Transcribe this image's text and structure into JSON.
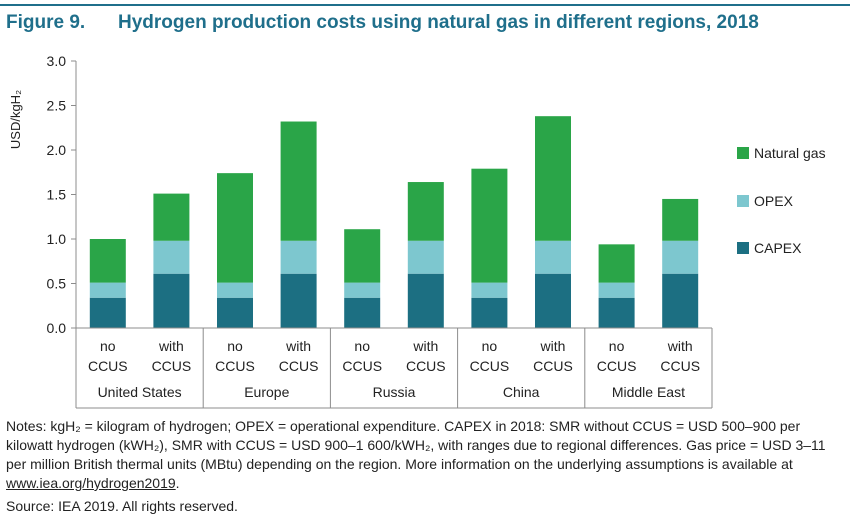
{
  "header": {
    "figure_label": "Figure 9.",
    "title": "Hydrogen production costs using natural gas in different regions, 2018"
  },
  "chart_data": {
    "type": "bar",
    "stacked": true,
    "title": "Hydrogen production costs using natural gas in different regions, 2018",
    "ylabel": "USD/kgH₂",
    "ylim": [
      0,
      3.0
    ],
    "yticks": [
      "0.0",
      "0.5",
      "1.0",
      "1.5",
      "2.0",
      "2.5",
      "3.0"
    ],
    "grid": false,
    "legend_position": "right",
    "groups": [
      "United States",
      "Europe",
      "Russia",
      "China",
      "Middle East"
    ],
    "sub_categories": [
      [
        "no",
        "CCUS"
      ],
      [
        "with",
        "CCUS"
      ]
    ],
    "categories": [
      "United States no CCUS",
      "United States with CCUS",
      "Europe no CCUS",
      "Europe with CCUS",
      "Russia no CCUS",
      "Russia with CCUS",
      "China no CCUS",
      "China with CCUS",
      "Middle East no CCUS",
      "Middle East with CCUS"
    ],
    "series": [
      {
        "name": "CAPEX",
        "color": "#1c6f82",
        "values": [
          0.34,
          0.61,
          0.34,
          0.61,
          0.34,
          0.61,
          0.34,
          0.61,
          0.34,
          0.61
        ]
      },
      {
        "name": "OPEX",
        "color": "#7dc7cf",
        "values": [
          0.17,
          0.37,
          0.17,
          0.37,
          0.17,
          0.37,
          0.17,
          0.37,
          0.17,
          0.37
        ]
      },
      {
        "name": "Natural gas",
        "color": "#2aa548",
        "values": [
          0.49,
          0.53,
          1.23,
          1.34,
          0.6,
          0.66,
          1.28,
          1.4,
          0.43,
          0.47
        ]
      }
    ],
    "legend_order": [
      "Natural gas",
      "OPEX",
      "CAPEX"
    ]
  },
  "notes": {
    "text": "Notes: kgH₂ = kilogram of hydrogen; OPEX = operational expenditure. CAPEX in 2018: SMR without CCUS = USD 500–900 per kilowatt hydrogen (kWH₂), SMR with CCUS = USD 900–1 600/kWH₂, with ranges due to regional differences. Gas price = USD 3–11 per million British thermal units (MBtu) depending on the region. More information on the underlying assumptions is available at ",
    "link": "www.iea.org/hydrogen2019",
    "end": "."
  },
  "source": "Source: IEA 2019. All rights reserved."
}
